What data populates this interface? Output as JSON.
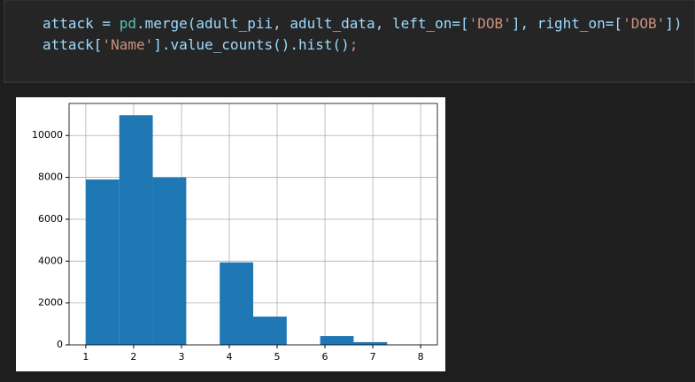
{
  "code": {
    "lines": [
      [
        {
          "text": "attack = ",
          "color": "#9cdcfe"
        },
        {
          "text": "pd",
          "color": "#4ec9b0"
        },
        {
          "text": ".merge(adult_pii, adult_data, left_on=[",
          "color": "#9cdcfe"
        },
        {
          "text": "'DOB'",
          "color": "#ce9178"
        },
        {
          "text": "], right_on=[",
          "color": "#9cdcfe"
        },
        {
          "text": "'DOB'",
          "color": "#ce9178"
        },
        {
          "text": "])",
          "color": "#9cdcfe"
        }
      ],
      [
        {
          "text": "attack[",
          "color": "#9cdcfe"
        },
        {
          "text": "'Name'",
          "color": "#ce9178"
        },
        {
          "text": "].value_counts().hist()",
          "color": "#9cdcfe"
        },
        {
          "text": ";",
          "color": "#ce9178"
        }
      ]
    ]
  },
  "chart_data": {
    "type": "histogram",
    "bins": [
      1,
      1.7,
      2.4,
      3.1,
      3.8,
      4.5,
      5.2,
      5.9,
      6.6,
      7.3,
      8
    ],
    "counts": [
      7900,
      10970,
      8000,
      0,
      3940,
      1350,
      0,
      420,
      130,
      10
    ],
    "color": "#1f77b4",
    "xlim": [
      0.65,
      8.35
    ],
    "xticks": [
      1,
      2,
      3,
      4,
      5,
      6,
      7,
      8
    ],
    "ylim": [
      0,
      11530
    ],
    "yticks": [
      0,
      2000,
      4000,
      6000,
      8000,
      10000
    ],
    "grid": true
  }
}
